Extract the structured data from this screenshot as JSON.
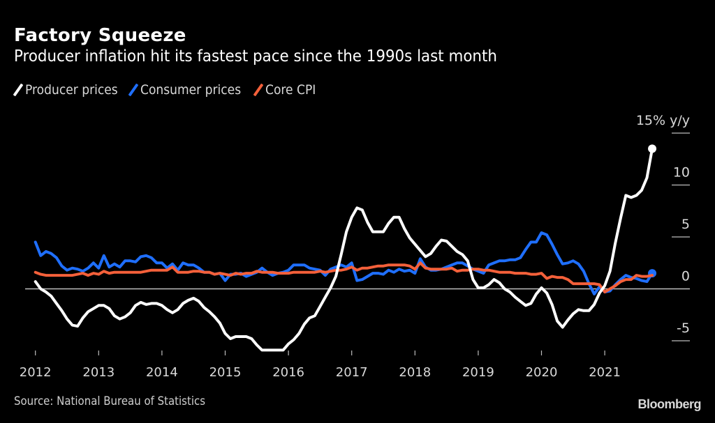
{
  "header": {
    "title": "Factory Squeeze",
    "subtitle": "Producer inflation hit its fastest pace since the 1990s last month"
  },
  "legend": [
    {
      "label": "Producer prices",
      "color": "#ffffff"
    },
    {
      "label": "Consumer prices",
      "color": "#1f6fff"
    },
    {
      "label": "Core CPI",
      "color": "#f4603a"
    }
  ],
  "footer": {
    "source": "Source: National Bureau of Statistics",
    "brand": "Bloomberg"
  },
  "chart_data": {
    "type": "line",
    "title": "Factory Squeeze",
    "subtitle": "Producer inflation hit its fastest pace since the 1990s last month",
    "xlabel": "",
    "ylabel": "% y/y",
    "y_unit_label": "15% y/y",
    "x_start": "2012-01",
    "x_frequency": "monthly",
    "x_ticks": [
      "2012",
      "2013",
      "2014",
      "2015",
      "2016",
      "2017",
      "2018",
      "2019",
      "2020",
      "2021"
    ],
    "y_ticks": [
      {
        "value": 15,
        "label": "15% y/y"
      },
      {
        "value": 10,
        "label": "10"
      },
      {
        "value": 5,
        "label": "5"
      },
      {
        "value": 0,
        "label": "0"
      },
      {
        "value": -5,
        "label": "-5"
      }
    ],
    "ylim": [
      -6.5,
      15
    ],
    "xlim": [
      "2012-01",
      "2021-10"
    ],
    "legend_position": "top-left",
    "grid": false,
    "series": [
      {
        "name": "Producer prices",
        "color": "#ffffff",
        "end_marker": true,
        "values": [
          0.7,
          0.0,
          -0.3,
          -0.7,
          -1.4,
          -2.1,
          -2.9,
          -3.5,
          -3.6,
          -2.8,
          -2.2,
          -1.9,
          -1.6,
          -1.6,
          -1.9,
          -2.6,
          -2.9,
          -2.7,
          -2.3,
          -1.6,
          -1.3,
          -1.5,
          -1.4,
          -1.4,
          -1.6,
          -2.0,
          -2.3,
          -2.0,
          -1.4,
          -1.1,
          -0.9,
          -1.2,
          -1.8,
          -2.2,
          -2.7,
          -3.3,
          -4.3,
          -4.8,
          -4.6,
          -4.6,
          -4.6,
          -4.8,
          -5.4,
          -5.9,
          -5.9,
          -5.9,
          -5.9,
          -5.9,
          -5.3,
          -4.9,
          -4.3,
          -3.4,
          -2.8,
          -2.6,
          -1.7,
          -0.8,
          0.1,
          1.2,
          3.3,
          5.5,
          6.9,
          7.8,
          7.6,
          6.4,
          5.5,
          5.5,
          5.5,
          6.3,
          6.9,
          6.9,
          5.8,
          4.9,
          4.3,
          3.7,
          3.1,
          3.4,
          4.1,
          4.7,
          4.6,
          4.1,
          3.6,
          3.3,
          2.7,
          0.9,
          0.1,
          0.1,
          0.4,
          0.9,
          0.6,
          0.0,
          -0.3,
          -0.8,
          -1.2,
          -1.6,
          -1.4,
          -0.5,
          0.1,
          -0.4,
          -1.5,
          -3.1,
          -3.7,
          -3.0,
          -2.4,
          -2.0,
          -2.1,
          -2.1,
          -1.5,
          -0.4,
          0.3,
          1.7,
          4.4,
          6.8,
          9.0,
          8.8,
          9.0,
          9.5,
          10.7,
          13.5
        ]
      },
      {
        "name": "Consumer prices",
        "color": "#1f6fff",
        "end_marker": true,
        "values": [
          4.5,
          3.2,
          3.6,
          3.4,
          3.0,
          2.2,
          1.8,
          2.0,
          1.9,
          1.7,
          2.0,
          2.5,
          2.0,
          3.2,
          2.1,
          2.4,
          2.1,
          2.7,
          2.7,
          2.6,
          3.1,
          3.2,
          3.0,
          2.5,
          2.5,
          2.0,
          2.4,
          1.8,
          2.5,
          2.3,
          2.3,
          2.0,
          1.6,
          1.6,
          1.4,
          1.5,
          0.8,
          1.4,
          1.4,
          1.5,
          1.2,
          1.4,
          1.6,
          2.0,
          1.6,
          1.3,
          1.5,
          1.6,
          1.8,
          2.3,
          2.3,
          2.3,
          2.0,
          1.9,
          1.8,
          1.3,
          1.9,
          2.1,
          2.3,
          2.1,
          2.5,
          0.8,
          0.9,
          1.2,
          1.5,
          1.5,
          1.4,
          1.8,
          1.6,
          1.9,
          1.7,
          1.8,
          1.5,
          2.9,
          2.1,
          1.8,
          1.8,
          1.9,
          2.1,
          2.3,
          2.5,
          2.5,
          2.2,
          1.9,
          1.7,
          1.5,
          2.3,
          2.5,
          2.7,
          2.7,
          2.8,
          2.8,
          3.0,
          3.8,
          4.5,
          4.5,
          5.4,
          5.2,
          4.3,
          3.3,
          2.4,
          2.5,
          2.7,
          2.4,
          1.7,
          0.5,
          -0.5,
          0.2,
          -0.3,
          -0.2,
          0.4,
          0.9,
          1.3,
          1.1,
          1.0,
          0.8,
          0.7,
          1.5
        ]
      },
      {
        "name": "Core CPI",
        "color": "#f4603a",
        "end_marker": false,
        "values": [
          1.6,
          1.4,
          1.3,
          1.3,
          1.3,
          1.3,
          1.3,
          1.3,
          1.4,
          1.5,
          1.3,
          1.5,
          1.4,
          1.7,
          1.5,
          1.6,
          1.6,
          1.6,
          1.6,
          1.6,
          1.6,
          1.7,
          1.8,
          1.8,
          1.8,
          1.8,
          2.1,
          1.6,
          1.6,
          1.6,
          1.7,
          1.7,
          1.6,
          1.6,
          1.4,
          1.5,
          1.4,
          1.3,
          1.5,
          1.4,
          1.5,
          1.5,
          1.7,
          1.6,
          1.6,
          1.6,
          1.5,
          1.5,
          1.5,
          1.6,
          1.6,
          1.6,
          1.6,
          1.6,
          1.7,
          1.6,
          1.7,
          1.8,
          1.8,
          1.9,
          2.1,
          1.8,
          2.0,
          2.0,
          2.1,
          2.2,
          2.2,
          2.3,
          2.3,
          2.3,
          2.3,
          2.2,
          1.9,
          2.5,
          2.0,
          1.9,
          1.9,
          1.9,
          1.9,
          2.0,
          1.7,
          1.8,
          1.8,
          1.9,
          1.9,
          1.8,
          1.8,
          1.7,
          1.6,
          1.6,
          1.6,
          1.5,
          1.5,
          1.5,
          1.4,
          1.4,
          1.5,
          1.0,
          1.2,
          1.1,
          1.1,
          0.9,
          0.5,
          0.5,
          0.5,
          0.5,
          0.5,
          0.4,
          -0.3,
          0.0,
          0.3,
          0.7,
          0.9,
          0.9,
          1.3,
          1.2,
          1.2,
          1.3
        ]
      }
    ]
  }
}
